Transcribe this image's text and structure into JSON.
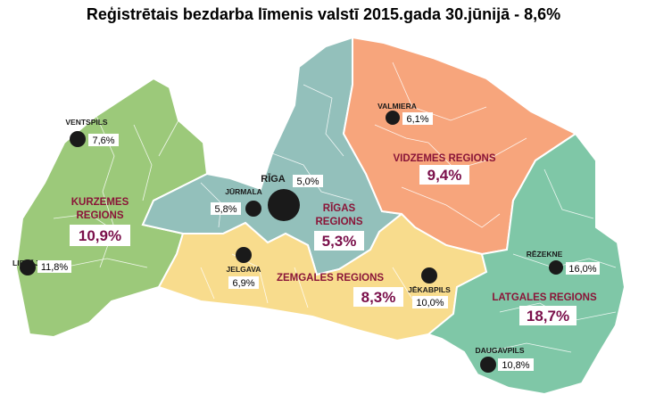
{
  "title": "Reģistrētais bezdarba līmenis valstī 2015.gada 30.jūnijā  - 8,6%",
  "colors": {
    "kurzeme": "#9cc97a",
    "riga": "#93c0bb",
    "vidzeme": "#f7a57c",
    "zemgale": "#f8dc8d",
    "latgale": "#7fc7a7",
    "label": "#8a1538",
    "rate": "#7a0f4a"
  },
  "regions": {
    "kurzeme": {
      "name_line1": "KURZEMES",
      "name_line2": "REGIONS",
      "rate": "10,9%"
    },
    "riga": {
      "name_line1": "RĪGAS",
      "name_line2": "REGIONS",
      "rate": "5,3%"
    },
    "vidzeme": {
      "name": "VIDZEMES REGIONS",
      "rate": "9,4%"
    },
    "zemgale": {
      "name": "ZEMGALES REGIONS",
      "rate": "8,3%"
    },
    "latgale": {
      "name": "LATGALES REGIONS",
      "rate": "18,7%"
    }
  },
  "cities": {
    "ventspils": {
      "name": "VENTSPILS",
      "rate": "7,6%"
    },
    "liepaja": {
      "name": "LIEPĀJA",
      "rate": "11,8%"
    },
    "jurmala": {
      "name": "JŪRMALA",
      "rate": "5,8%"
    },
    "riga": {
      "name": "RĪGA",
      "rate": "5,0%"
    },
    "jelgava": {
      "name": "JELGAVA",
      "rate": "6,9%"
    },
    "valmiera": {
      "name": "VALMIERA",
      "rate": "6,1%"
    },
    "jekabpils": {
      "name": "JĒKABPILS",
      "rate": "10,0%"
    },
    "rezekne": {
      "name": "RĒZEKNE",
      "rate": "16,0%"
    },
    "daugavpils": {
      "name": "DAUGAVPILS",
      "rate": "10,8%"
    }
  }
}
